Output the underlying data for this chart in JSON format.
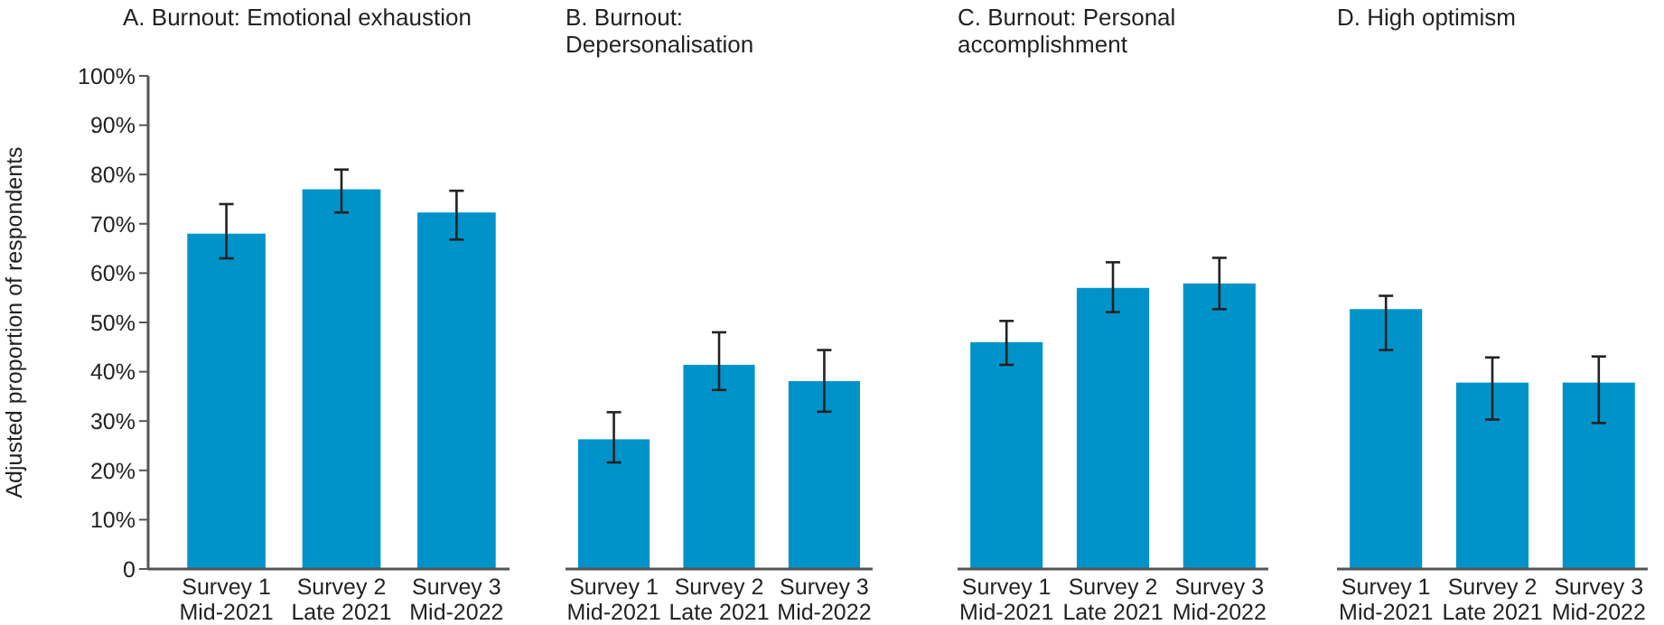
{
  "chart_data": [
    {
      "type": "bar",
      "title": "A. Burnout: Emotional exhaustion",
      "ylabel": "Adjusted proportion of respondents",
      "categories": [
        "Survey 1\nMid-2021",
        "Survey 2\nLate 2021",
        "Survey 3\nMid-2022"
      ],
      "values": [
        68,
        77,
        72.3
      ],
      "errors": [
        [
          63,
          74
        ],
        [
          72.3,
          81
        ],
        [
          66.8,
          76.7
        ]
      ],
      "color": "#0093c9",
      "ylim": [
        0,
        100
      ],
      "yticks": [
        0,
        {
          "value": 10,
          "label": "10%"
        },
        {
          "value": 20,
          "label": "20%"
        },
        {
          "value": 30,
          "label": "30%"
        },
        {
          "value": 40,
          "label": "40%"
        },
        {
          "value": 50,
          "label": "50%"
        },
        {
          "value": 60,
          "label": "60%"
        },
        {
          "value": 70,
          "label": "70%"
        },
        {
          "value": 80,
          "label": "80%"
        },
        {
          "value": 90,
          "label": "90%"
        },
        {
          "value": 100,
          "label": "100%"
        }
      ],
      "grid": false
    },
    {
      "type": "bar",
      "title": "B. Burnout: Depersonalisation",
      "categories": [
        "Survey 1\nMid-2021",
        "Survey 2\nLate 2021",
        "Survey 3\nMid-2022"
      ],
      "values": [
        26.3,
        41.4,
        38.1
      ],
      "errors": [
        [
          21.6,
          31.8
        ],
        [
          36.3,
          48
        ],
        [
          31.9,
          44.4
        ]
      ],
      "color": "#0093c9",
      "ylim": [
        0,
        100
      ],
      "tick_labels": "x",
      "grid": false
    },
    {
      "type": "bar",
      "title": "C. Burnout: Personal accomplishment",
      "categories": [
        "Survey 1\nMid-2021",
        "Survey 2\nLate 2021",
        "Survey 3\nMid-2022"
      ],
      "values": [
        46,
        57,
        57.9
      ],
      "errors": [
        [
          41.4,
          50.3
        ],
        [
          52.1,
          62.2
        ],
        [
          52.7,
          63.1
        ]
      ],
      "color": "#0093c9",
      "ylim": [
        0,
        100
      ],
      "tick_labels": "x",
      "grid": false
    },
    {
      "type": "bar",
      "title": "D. High optimism",
      "categories": [
        "Survey 1\nMid-2021",
        "Survey 2\nLate 2021",
        "Survey 3\nMid-2022"
      ],
      "values": [
        52.7,
        37.8,
        37.8
      ],
      "errors": [
        [
          44.4,
          55.4
        ],
        [
          30.3,
          42.9
        ],
        [
          29.6,
          43.1
        ]
      ],
      "color": "#0093c9",
      "ylim": [
        0,
        100
      ],
      "tick_labels": "x",
      "grid": false
    }
  ]
}
